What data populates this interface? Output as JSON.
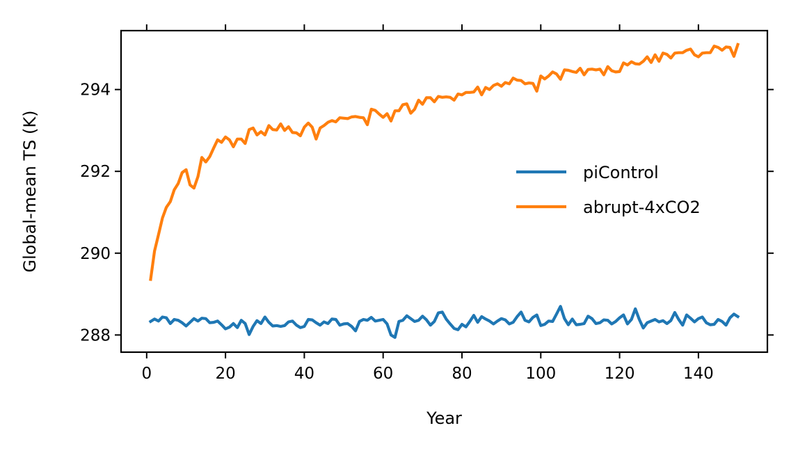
{
  "chart_data": {
    "type": "line",
    "title": "",
    "xlabel": "Year",
    "ylabel": "Global-mean TS (K)",
    "xlim": [
      -6.5,
      157.5
    ],
    "ylim": [
      287.58,
      295.44
    ],
    "xticks": [
      0,
      20,
      40,
      60,
      80,
      100,
      120,
      140
    ],
    "yticks": [
      288,
      290,
      292,
      294
    ],
    "grid": false,
    "legend_position": "center-right",
    "x": [
      1,
      2,
      3,
      4,
      5,
      6,
      7,
      8,
      9,
      10,
      11,
      12,
      13,
      14,
      15,
      16,
      17,
      18,
      19,
      20,
      21,
      22,
      23,
      24,
      25,
      26,
      27,
      28,
      29,
      30,
      31,
      32,
      33,
      34,
      35,
      36,
      37,
      38,
      39,
      40,
      41,
      42,
      43,
      44,
      45,
      46,
      47,
      48,
      49,
      50,
      51,
      52,
      53,
      54,
      55,
      56,
      57,
      58,
      59,
      60,
      61,
      62,
      63,
      64,
      65,
      66,
      67,
      68,
      69,
      70,
      71,
      72,
      73,
      74,
      75,
      76,
      77,
      78,
      79,
      80,
      81,
      82,
      83,
      84,
      85,
      86,
      87,
      88,
      89,
      90,
      91,
      92,
      93,
      94,
      95,
      96,
      97,
      98,
      99,
      100,
      101,
      102,
      103,
      104,
      105,
      106,
      107,
      108,
      109,
      110,
      111,
      112,
      113,
      114,
      115,
      116,
      117,
      118,
      119,
      120,
      121,
      122,
      123,
      124,
      125,
      126,
      127,
      128,
      129,
      130,
      131,
      132,
      133,
      134,
      135,
      136,
      137,
      138,
      139,
      140,
      141,
      142,
      143,
      144,
      145,
      146,
      147,
      148,
      149,
      150
    ],
    "series": [
      {
        "name": "piControl",
        "color": "#1f77b4",
        "values": [
          288.33,
          288.39,
          288.34,
          288.44,
          288.42,
          288.28,
          288.38,
          288.36,
          288.3,
          288.22,
          288.31,
          288.4,
          288.34,
          288.41,
          288.4,
          288.3,
          288.31,
          288.34,
          288.25,
          288.15,
          288.19,
          288.28,
          288.18,
          288.36,
          288.28,
          288.01,
          288.21,
          288.35,
          288.28,
          288.44,
          288.31,
          288.22,
          288.23,
          288.21,
          288.23,
          288.32,
          288.34,
          288.24,
          288.18,
          288.21,
          288.38,
          288.37,
          288.3,
          288.24,
          288.32,
          288.28,
          288.39,
          288.38,
          288.24,
          288.27,
          288.28,
          288.21,
          288.1,
          288.33,
          288.38,
          288.36,
          288.43,
          288.34,
          288.36,
          288.38,
          288.27,
          288.0,
          287.94,
          288.33,
          288.36,
          288.47,
          288.4,
          288.33,
          288.36,
          288.46,
          288.37,
          288.24,
          288.33,
          288.54,
          288.56,
          288.39,
          288.27,
          288.16,
          288.13,
          288.26,
          288.2,
          288.33,
          288.48,
          288.31,
          288.45,
          288.39,
          288.34,
          288.27,
          288.34,
          288.4,
          288.37,
          288.27,
          288.31,
          288.45,
          288.56,
          288.36,
          288.32,
          288.43,
          288.49,
          288.23,
          288.26,
          288.34,
          288.33,
          288.51,
          288.7,
          288.4,
          288.25,
          288.39,
          288.25,
          288.26,
          288.28,
          288.46,
          288.4,
          288.28,
          288.3,
          288.37,
          288.36,
          288.27,
          288.33,
          288.42,
          288.49,
          288.27,
          288.38,
          288.64,
          288.38,
          288.17,
          288.3,
          288.34,
          288.38,
          288.32,
          288.35,
          288.28,
          288.35,
          288.55,
          288.38,
          288.24,
          288.49,
          288.41,
          288.32,
          288.4,
          288.44,
          288.3,
          288.25,
          288.26,
          288.38,
          288.33,
          288.24,
          288.42,
          288.51,
          288.45
        ]
      },
      {
        "name": "abrupt-4xCO2",
        "color": "#ff7f0e",
        "values": [
          289.36,
          290.05,
          290.45,
          290.86,
          291.12,
          291.26,
          291.55,
          291.7,
          291.97,
          292.04,
          291.67,
          291.59,
          291.87,
          292.34,
          292.23,
          292.36,
          292.57,
          292.77,
          292.71,
          292.84,
          292.77,
          292.6,
          292.79,
          292.79,
          292.68,
          293.02,
          293.06,
          292.89,
          292.97,
          292.89,
          293.12,
          293.02,
          293.01,
          293.16,
          293.0,
          293.09,
          292.95,
          292.94,
          292.87,
          293.08,
          293.18,
          293.08,
          292.79,
          293.06,
          293.12,
          293.2,
          293.24,
          293.21,
          293.31,
          293.3,
          293.29,
          293.33,
          293.34,
          293.32,
          293.31,
          293.14,
          293.52,
          293.49,
          293.4,
          293.32,
          293.41,
          293.23,
          293.48,
          293.48,
          293.63,
          293.65,
          293.42,
          293.52,
          293.74,
          293.64,
          293.8,
          293.8,
          293.7,
          293.83,
          293.81,
          293.82,
          293.81,
          293.74,
          293.89,
          293.87,
          293.93,
          293.93,
          293.94,
          294.06,
          293.87,
          294.05,
          294.0,
          294.1,
          294.14,
          294.08,
          294.17,
          294.14,
          294.28,
          294.23,
          294.22,
          294.14,
          294.16,
          294.15,
          293.96,
          294.33,
          294.26,
          294.33,
          294.43,
          294.38,
          294.25,
          294.48,
          294.47,
          294.44,
          294.42,
          294.52,
          294.36,
          294.49,
          294.5,
          294.48,
          294.5,
          294.36,
          294.56,
          294.46,
          294.43,
          294.44,
          294.65,
          294.6,
          294.68,
          294.63,
          294.62,
          294.69,
          294.8,
          294.66,
          294.85,
          294.69,
          294.89,
          294.86,
          294.77,
          294.89,
          294.9,
          294.9,
          294.96,
          294.99,
          294.85,
          294.8,
          294.89,
          294.9,
          294.9,
          295.06,
          295.03,
          294.96,
          295.04,
          295.03,
          294.81,
          295.1
        ]
      }
    ]
  }
}
